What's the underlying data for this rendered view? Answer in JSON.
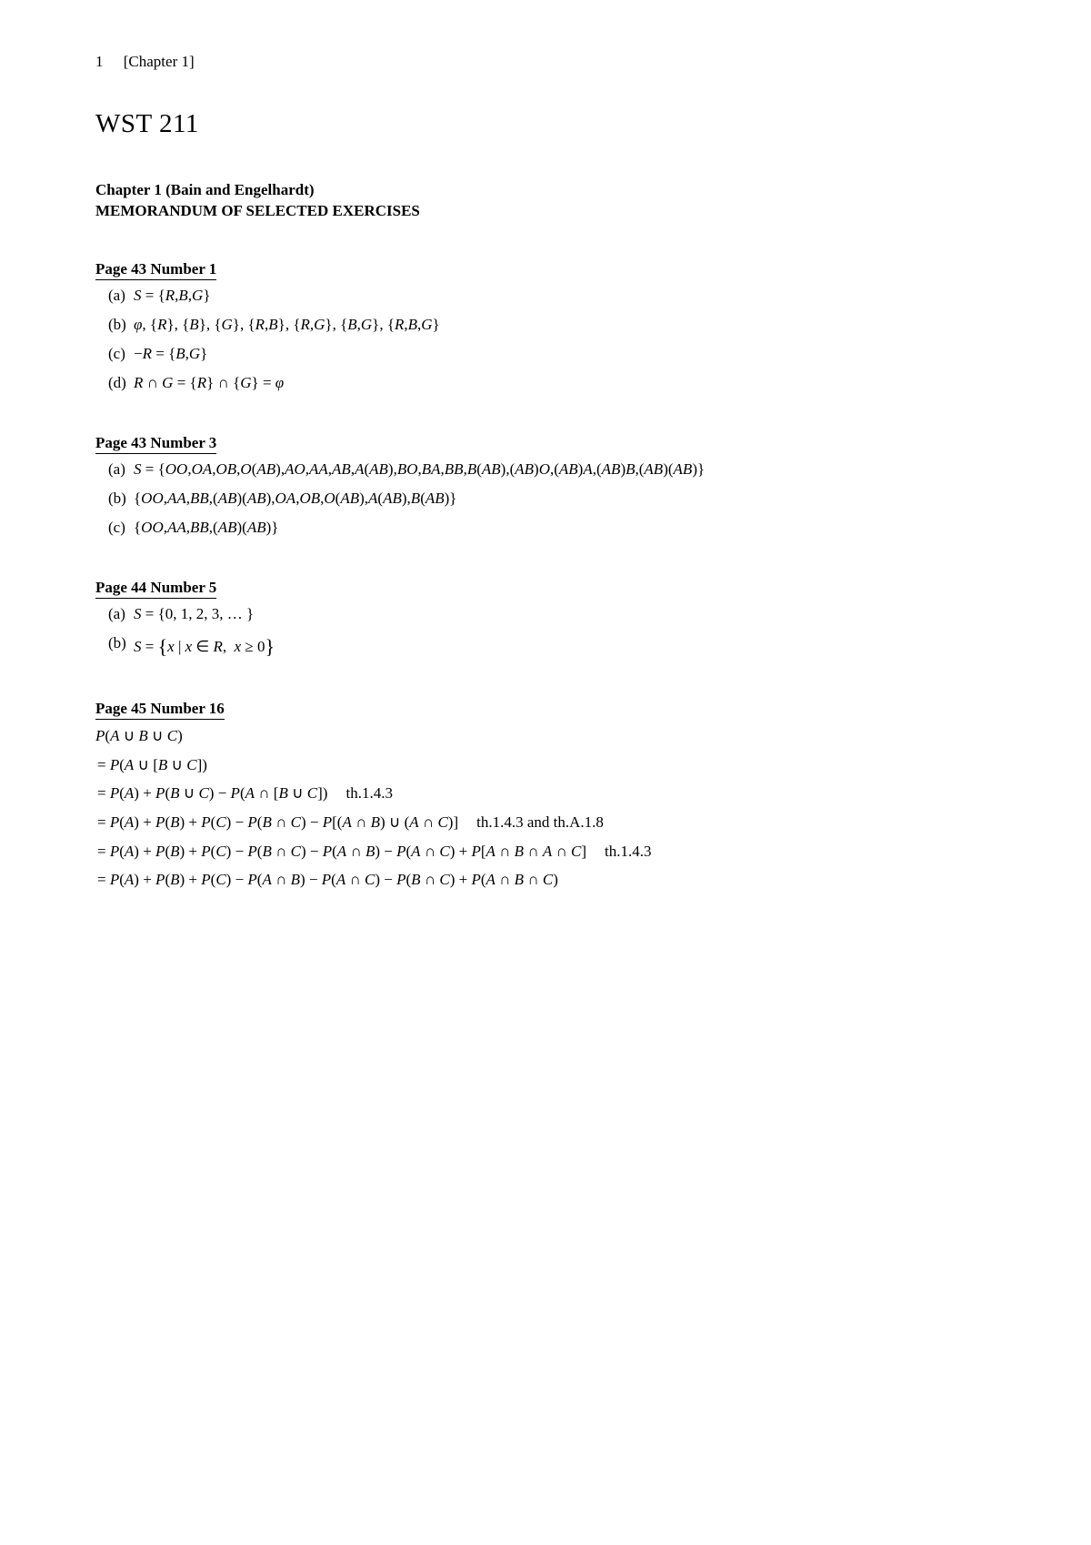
{
  "header": {
    "page_number": "1",
    "chapter_label": "[Chapter 1]"
  },
  "title": "WST 211",
  "subtitle": {
    "chapter": "Chapter 1 (Bain and Engelhardt)",
    "memo": "MEMORANDUM OF SELECTED EXERCISES"
  },
  "sections": [
    {
      "heading": "Page 43 Number 1",
      "items": [
        {
          "label": "(a)",
          "content_html": "<span class='math'>S</span> <span class='op'>=</span> <span class='op'>{</span><span class='math'>R</span><span class='op'>,</span><span class='math'>B</span><span class='op'>,</span><span class='math'>G</span><span class='op'>}</span>"
        },
        {
          "label": "(b)",
          "content_html": "<span class='math'>&phi;</span><span class='op'>, {</span><span class='math'>R</span><span class='op'>}, {</span><span class='math'>B</span><span class='op'>}, {</span><span class='math'>G</span><span class='op'>}, {</span><span class='math'>R</span><span class='op'>,</span><span class='math'>B</span><span class='op'>}, {</span><span class='math'>R</span><span class='op'>,</span><span class='math'>G</span><span class='op'>}, {</span><span class='math'>B</span><span class='op'>,</span><span class='math'>G</span><span class='op'>}, {</span><span class='math'>R</span><span class='op'>,</span><span class='math'>B</span><span class='op'>,</span><span class='math'>G</span><span class='op'>}</span>"
        },
        {
          "label": "(c)",
          "content_html": "<span class='op'>&minus;</span><span class='math'>R</span> <span class='op'>=</span> <span class='op'>{</span><span class='math'>B</span><span class='op'>,</span><span class='math'>G</span><span class='op'>}</span>"
        },
        {
          "label": "(d)",
          "content_html": "<span class='math'>R</span> <span class='op'>&cap;</span> <span class='math'>G</span> <span class='op'>=</span> <span class='op'>{</span><span class='math'>R</span><span class='op'>}</span> <span class='op'>&cap;</span> <span class='op'>{</span><span class='math'>G</span><span class='op'>}</span> <span class='op'>=</span> <span class='math'>&phi;</span>"
        }
      ]
    },
    {
      "heading": "Page 43 Number 3",
      "items": [
        {
          "label": "(a)",
          "content_html": "<span class='math'>S</span> <span class='op'>=</span> <span class='op'>{</span><span class='math'>OO</span><span class='op'>,</span><span class='math'>OA</span><span class='op'>,</span><span class='math'>OB</span><span class='op'>,</span><span class='math'>O</span><span class='op'>(</span><span class='math'>AB</span><span class='op'>),</span><span class='math'>AO</span><span class='op'>,</span><span class='math'>AA</span><span class='op'>,</span><span class='math'>AB</span><span class='op'>,</span><span class='math'>A</span><span class='op'>(</span><span class='math'>AB</span><span class='op'>),</span><span class='math'>BO</span><span class='op'>,</span><span class='math'>BA</span><span class='op'>,</span><span class='math'>BB</span><span class='op'>,</span><span class='math'>B</span><span class='op'>(</span><span class='math'>AB</span><span class='op'>),(</span><span class='math'>AB</span><span class='op'>)</span><span class='math'>O</span><span class='op'>,(</span><span class='math'>AB</span><span class='op'>)</span><span class='math'>A</span><span class='op'>,(</span><span class='math'>AB</span><span class='op'>)</span><span class='math'>B</span><span class='op'>,(</span><span class='math'>AB</span><span class='op'>)(</span><span class='math'>AB</span><span class='op'>)}</span>"
        },
        {
          "label": "(b)",
          "content_html": "<span class='op'>{</span><span class='math'>OO</span><span class='op'>,</span><span class='math'>AA</span><span class='op'>,</span><span class='math'>BB</span><span class='op'>,(</span><span class='math'>AB</span><span class='op'>)(</span><span class='math'>AB</span><span class='op'>),</span><span class='math'>OA</span><span class='op'>,</span><span class='math'>OB</span><span class='op'>,</span><span class='math'>O</span><span class='op'>(</span><span class='math'>AB</span><span class='op'>),</span><span class='math'>A</span><span class='op'>(</span><span class='math'>AB</span><span class='op'>),</span><span class='math'>B</span><span class='op'>(</span><span class='math'>AB</span><span class='op'>)}</span>"
        },
        {
          "label": "(c)",
          "content_html": "<span class='op'>{</span><span class='math'>OO</span><span class='op'>,</span><span class='math'>AA</span><span class='op'>,</span><span class='math'>BB</span><span class='op'>,(</span><span class='math'>AB</span><span class='op'>)(</span><span class='math'>AB</span><span class='op'>)}</span>"
        }
      ]
    },
    {
      "heading": "Page 44 Number 5",
      "items": [
        {
          "label": "(a)",
          "content_html": "<span class='math'>S</span> <span class='op'>=</span> <span class='op'>{0, 1, 2, 3, &hellip; }</span>"
        },
        {
          "label": "(b)",
          "content_html": "<span class='math'>S</span> <span class='op'>=</span> <span class='bigbrace'>{</span><span class='math'>x</span> <span class='op'>|</span> <span class='math'>x</span> <span class='op'>&isin;</span> <span class='math'>R</span><span class='op'>, &nbsp;</span><span class='math'>x</span> <span class='op'>&ge; 0</span><span class='bigbrace'>}</span>"
        }
      ]
    },
    {
      "heading": "Page 45 Number 16",
      "proof": [
        "<span class='math'>P</span><span class='op'>(</span><span class='math'>A</span> <span class='op'>&cup;</span> <span class='math'>B</span> <span class='op'>&cup;</span> <span class='math'>C</span><span class='op'>)</span>",
        "<span class='op'>=</span> <span class='math'>P</span><span class='op'>(</span><span class='math'>A</span> <span class='op'>&cup; [</span><span class='math'>B</span> <span class='op'>&cup;</span> <span class='math'>C</span><span class='op'>])</span>",
        "<span class='op'>=</span> <span class='math'>P</span><span class='op'>(</span><span class='math'>A</span><span class='op'>) +</span> <span class='math'>P</span><span class='op'>(</span><span class='math'>B</span> <span class='op'>&cup;</span> <span class='math'>C</span><span class='op'>) &minus;</span> <span class='math'>P</span><span class='op'>(</span><span class='math'>A</span> <span class='op'>&cap; [</span><span class='math'>B</span> <span class='op'>&cup;</span> <span class='math'>C</span><span class='op'>])</span><span class='ref'>th.1.4.3</span>",
        "<span class='op'>=</span> <span class='math'>P</span><span class='op'>(</span><span class='math'>A</span><span class='op'>) +</span> <span class='math'>P</span><span class='op'>(</span><span class='math'>B</span><span class='op'>) +</span> <span class='math'>P</span><span class='op'>(</span><span class='math'>C</span><span class='op'>) &minus;</span> <span class='math'>P</span><span class='op'>(</span><span class='math'>B</span> <span class='op'>&cap;</span> <span class='math'>C</span><span class='op'>) &minus;</span> <span class='math'>P</span><span class='op'>[(</span><span class='math'>A</span> <span class='op'>&cap;</span> <span class='math'>B</span><span class='op'>) &cup; (</span><span class='math'>A</span> <span class='op'>&cap;</span> <span class='math'>C</span><span class='op'>)]</span><span class='ref'>th.1.4.3 and th.A.1.8</span>",
        "<span class='op'>=</span> <span class='math'>P</span><span class='op'>(</span><span class='math'>A</span><span class='op'>) +</span> <span class='math'>P</span><span class='op'>(</span><span class='math'>B</span><span class='op'>) +</span> <span class='math'>P</span><span class='op'>(</span><span class='math'>C</span><span class='op'>) &minus;</span> <span class='math'>P</span><span class='op'>(</span><span class='math'>B</span> <span class='op'>&cap;</span> <span class='math'>C</span><span class='op'>) &minus;</span> <span class='math'>P</span><span class='op'>(</span><span class='math'>A</span> <span class='op'>&cap;</span> <span class='math'>B</span><span class='op'>) &minus;</span> <span class='math'>P</span><span class='op'>(</span><span class='math'>A</span> <span class='op'>&cap;</span> <span class='math'>C</span><span class='op'>) +</span> <span class='math'>P</span><span class='op'>[</span><span class='math'>A</span> <span class='op'>&cap;</span> <span class='math'>B</span> <span class='op'>&cap;</span> <span class='math'>A</span> <span class='op'>&cap;</span> <span class='math'>C</span><span class='op'>]</span><span class='ref'>th.1.4.3</span>",
        "<span class='op'>=</span> <span class='math'>P</span><span class='op'>(</span><span class='math'>A</span><span class='op'>) +</span> <span class='math'>P</span><span class='op'>(</span><span class='math'>B</span><span class='op'>) +</span> <span class='math'>P</span><span class='op'>(</span><span class='math'>C</span><span class='op'>) &minus;</span> <span class='math'>P</span><span class='op'>(</span><span class='math'>A</span> <span class='op'>&cap;</span> <span class='math'>B</span><span class='op'>) &minus;</span> <span class='math'>P</span><span class='op'>(</span><span class='math'>A</span> <span class='op'>&cap;</span> <span class='math'>C</span><span class='op'>) &minus;</span> <span class='math'>P</span><span class='op'>(</span><span class='math'>B</span> <span class='op'>&cap;</span> <span class='math'>C</span><span class='op'>) +</span> <span class='math'>P</span><span class='op'>(</span><span class='math'>A</span> <span class='op'>&cap;</span> <span class='math'>B</span> <span class='op'>&cap;</span> <span class='math'>C</span><span class='op'>)</span>"
      ]
    }
  ],
  "style": {
    "page_bg": "#ffffff",
    "text_color": "#000000",
    "font_family": "Times New Roman, serif",
    "body_fontsize_pt": 12,
    "title_fontsize_pt": 22
  }
}
